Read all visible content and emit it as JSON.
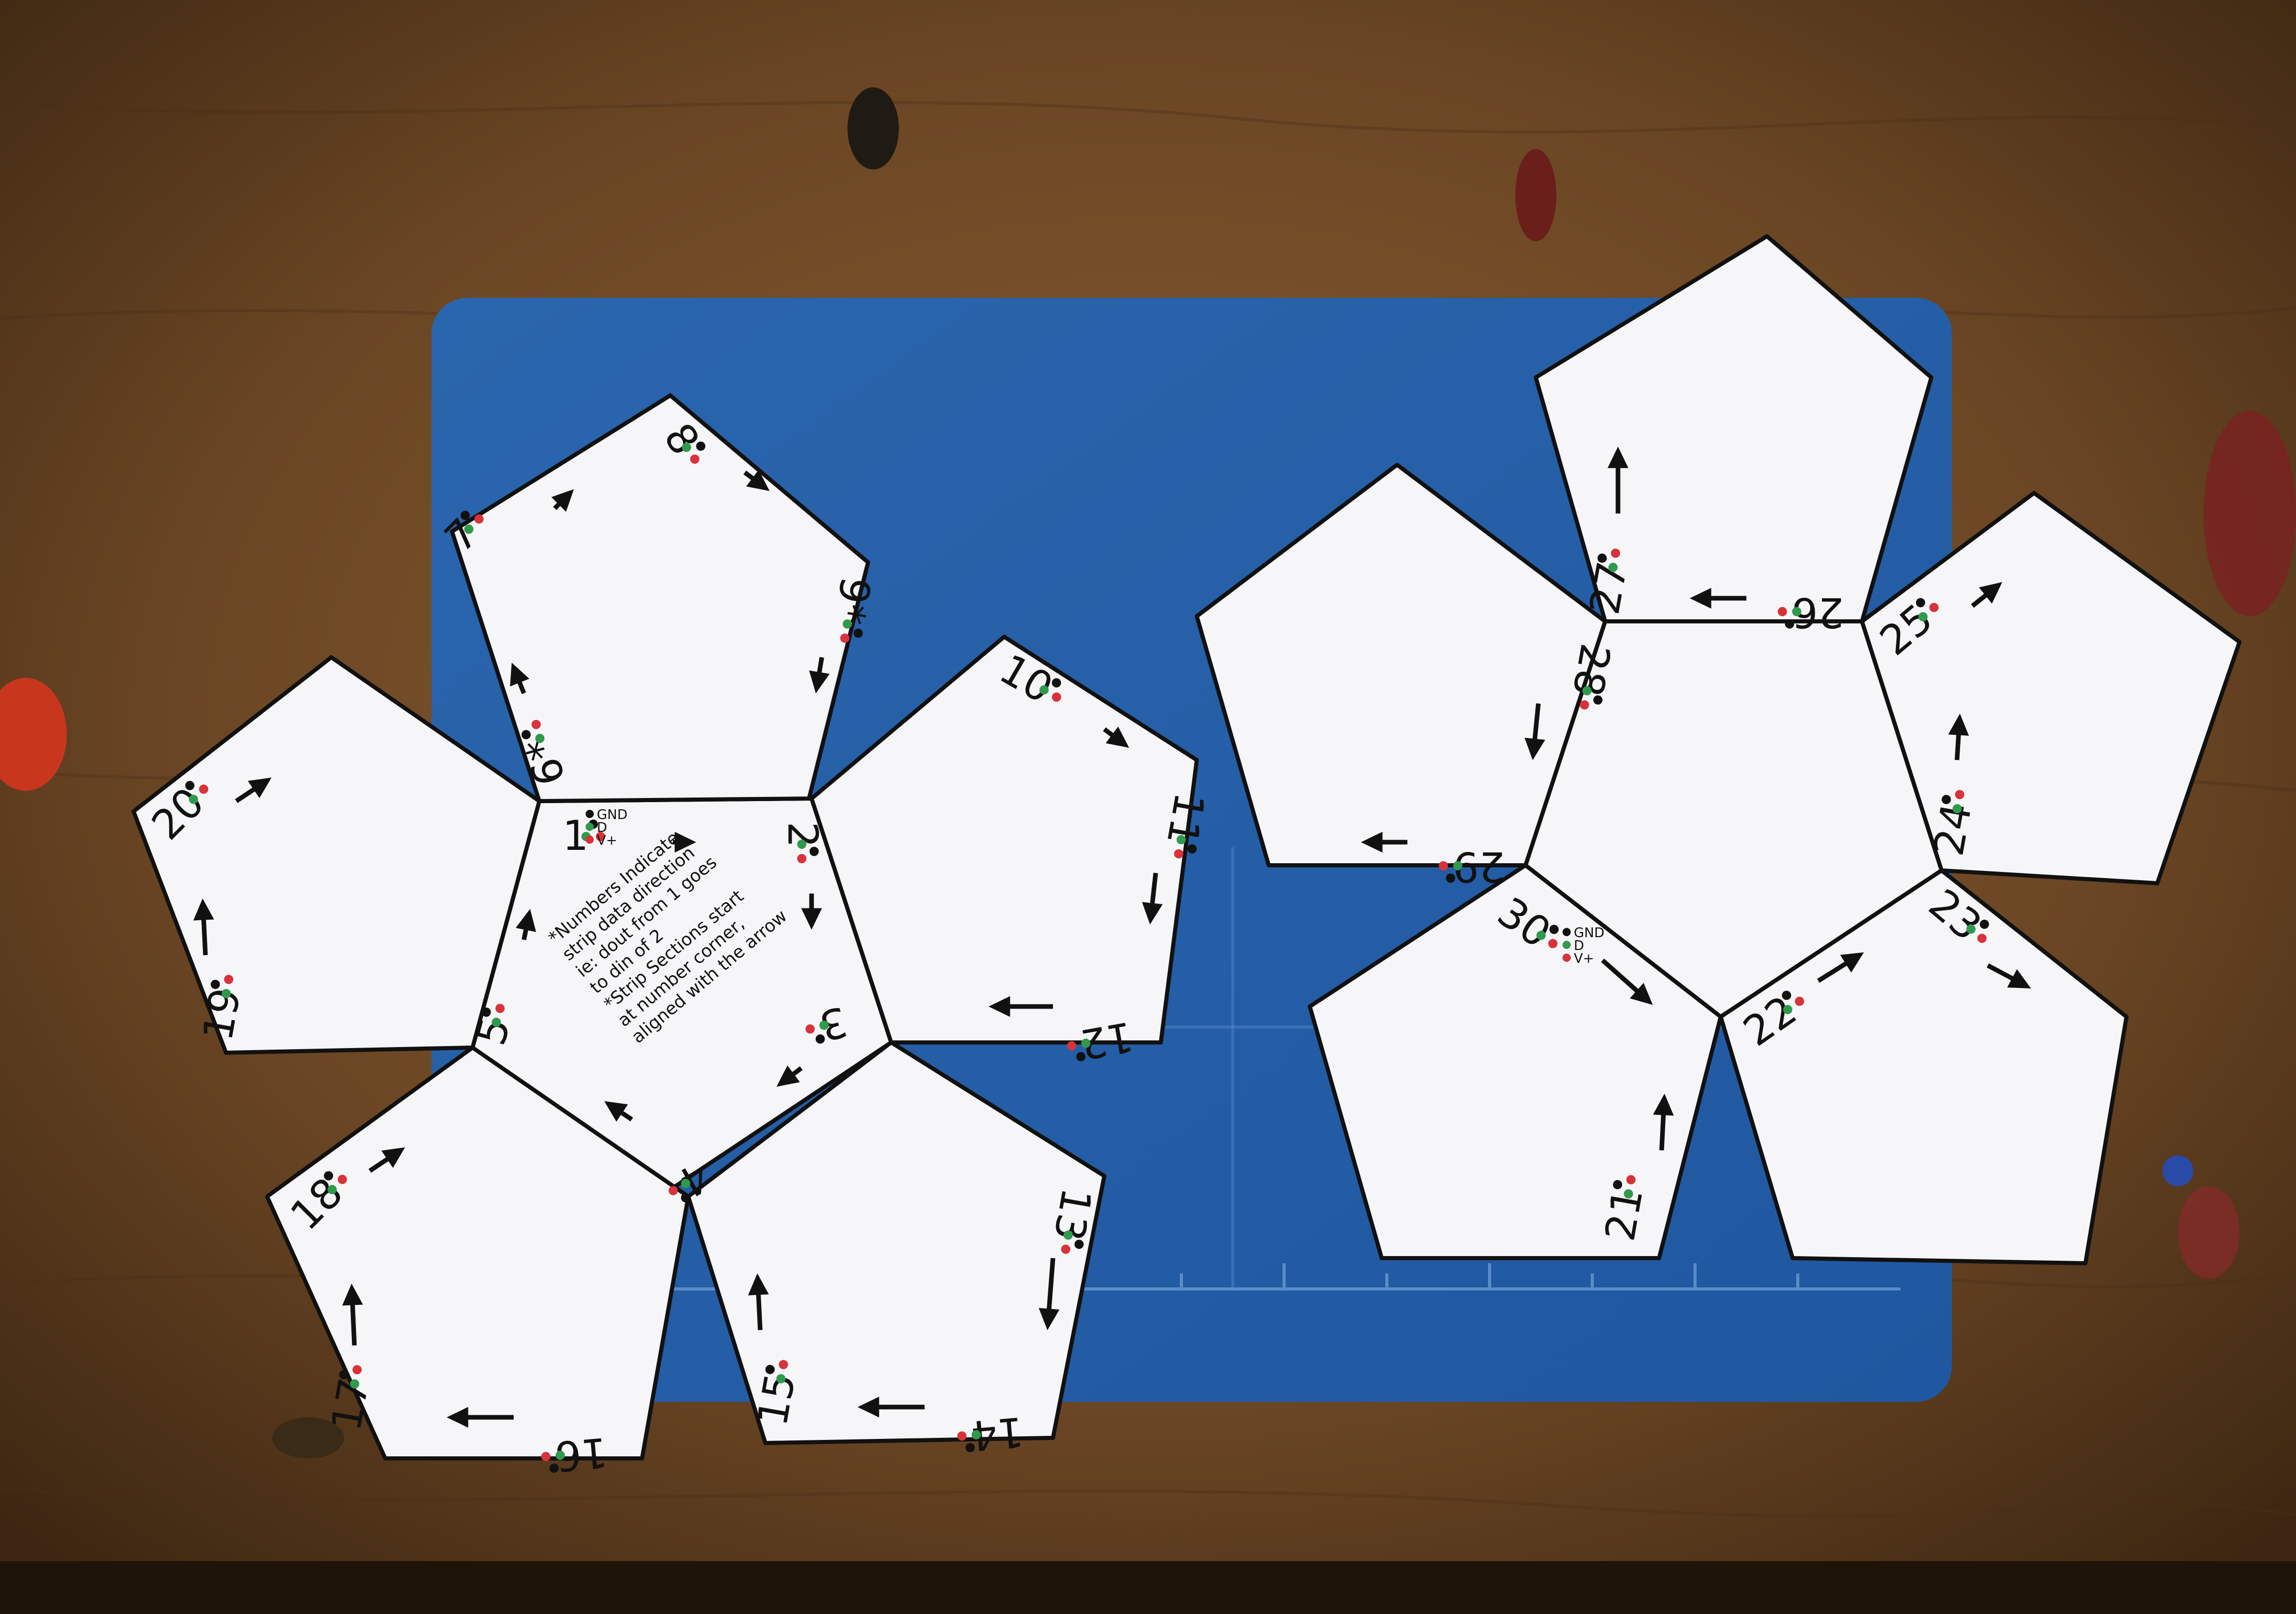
{
  "labels": {
    "p1": "1",
    "p2": "2",
    "p3": "3",
    "p4": "4",
    "p5": "5",
    "p6": "6*",
    "p7": "7",
    "p8": "8",
    "p9": "9*",
    "p10": "10",
    "p11": "11",
    "p12": "12",
    "p13": "13",
    "p14": "14",
    "p15": "15",
    "p16": "16",
    "p17": "17",
    "p18": "18",
    "p19": "19",
    "p20": "20",
    "p21": "21",
    "p22": "22",
    "p23": "23",
    "p24": "24",
    "p25": "25",
    "p26": "26",
    "p27": "27",
    "p28": "28",
    "p29": "29",
    "p30": "30"
  },
  "pin_legend": {
    "gnd": "GND",
    "d": "D",
    "vplus": "V+"
  },
  "notes": [
    "*Numbers Indicate",
    "strip data direction",
    "ie: dout from 1 goes",
    "to din of 2",
    "*Strip Sections start",
    "at number corner,",
    "aligned with the arrow"
  ],
  "colors": {
    "table": "#6b4624",
    "mat": "#2f72b8",
    "paper": "#f6f6f8",
    "dot_black": "#111111",
    "dot_green": "#2f9a4c",
    "dot_red": "#d8323a"
  }
}
